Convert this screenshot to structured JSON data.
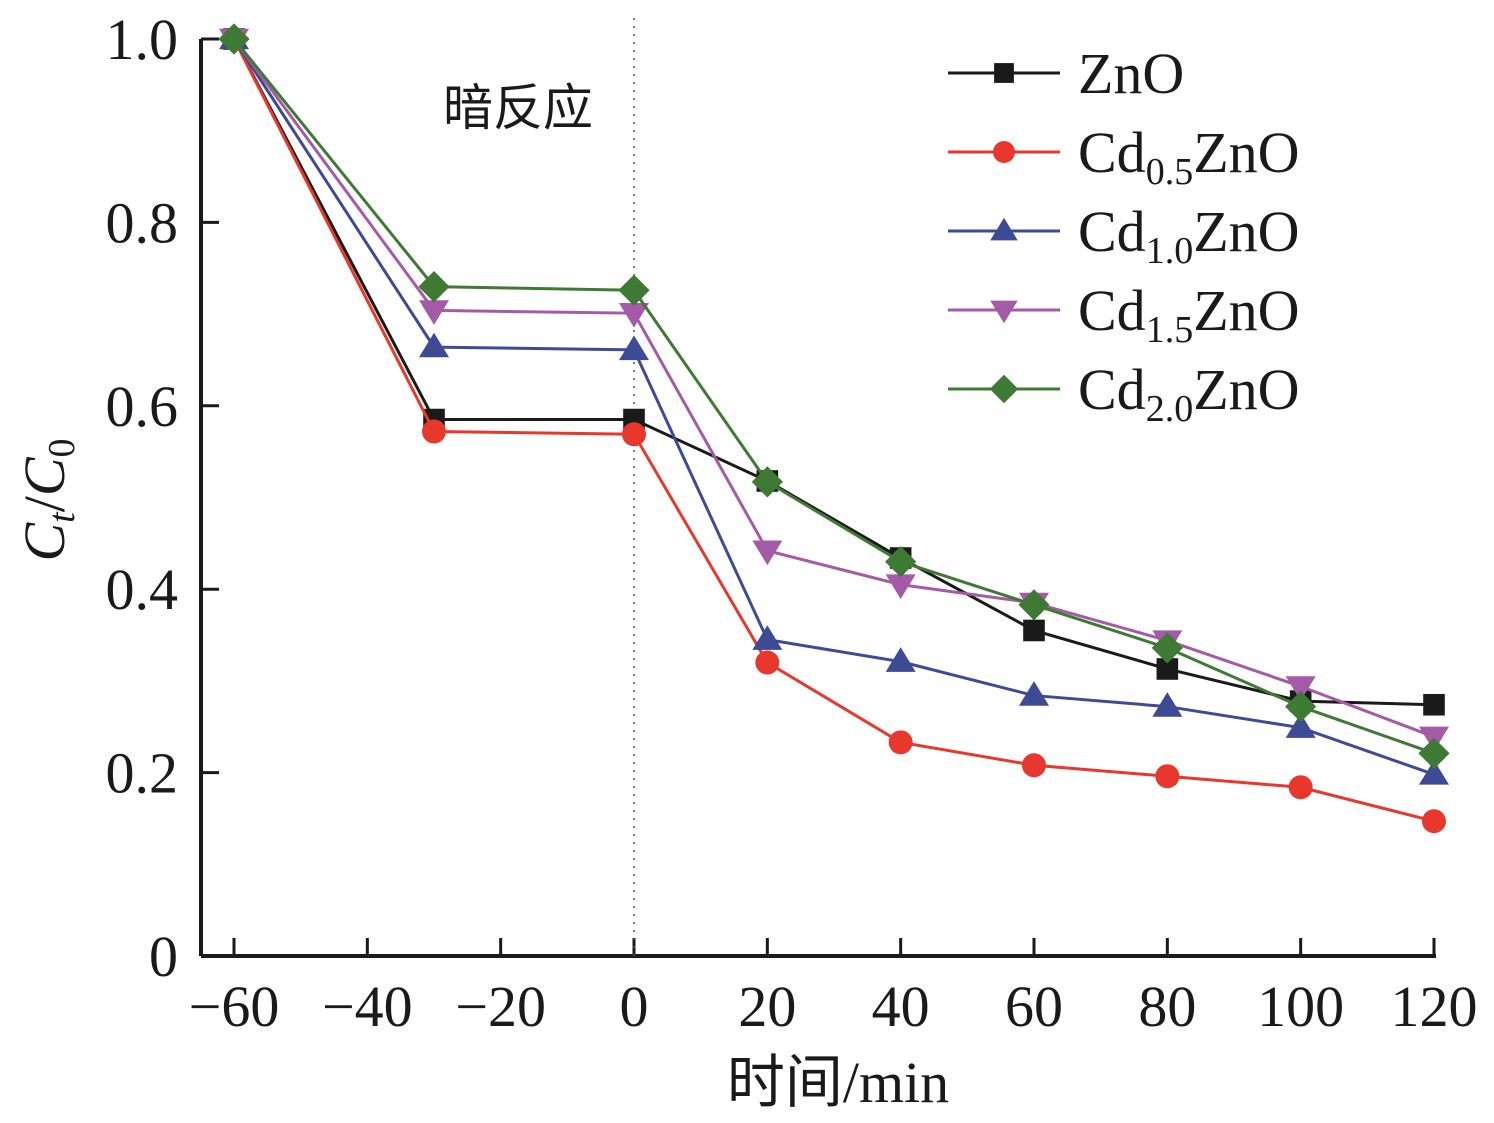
{
  "chart_data": {
    "type": "line",
    "title": "",
    "xlabel": "时间/min",
    "ylabel": "Ct/C0",
    "ylabel_parts": {
      "main1": "C",
      "sub1": "t",
      "slash": "/",
      "main2": "C",
      "sub2": "0"
    },
    "xlim": [
      -65,
      122
    ],
    "ylim": [
      0,
      1.0
    ],
    "x_ticks": [
      -60,
      -40,
      -20,
      0,
      20,
      40,
      60,
      80,
      100,
      120
    ],
    "x_tick_labels": [
      "−60",
      "−40",
      "−20",
      "0",
      "20",
      "40",
      "60",
      "80",
      "100",
      "120"
    ],
    "y_ticks": [
      0,
      0.2,
      0.4,
      0.6,
      0.8,
      1.0
    ],
    "y_tick_labels": [
      "0",
      "0.2",
      "0.4",
      "0.6",
      "0.8",
      "1.0"
    ],
    "grid": false,
    "legend_position": "top-right",
    "annotations": [
      {
        "text": "暗反应",
        "x": -17,
        "y": 0.93,
        "note": "dark reaction region"
      }
    ],
    "reference_lines": [
      {
        "type": "vertical",
        "x": 0,
        "style": "dotted"
      }
    ],
    "x": [
      -60,
      -30,
      0,
      20,
      40,
      60,
      80,
      100,
      120
    ],
    "series": [
      {
        "name": "ZnO",
        "label_main": "ZnO",
        "label_sub": "",
        "label_tail": "",
        "color": "#1a1a1a",
        "marker": "square",
        "values": [
          1.0,
          0.585,
          0.585,
          0.518,
          0.434,
          0.355,
          0.313,
          0.278,
          0.274
        ]
      },
      {
        "name": "Cd0.5ZnO",
        "label_main": "Cd",
        "label_sub": "0.5",
        "label_tail": "ZnO",
        "color": "#e8372c",
        "marker": "circle",
        "values": [
          1.0,
          0.572,
          0.569,
          0.32,
          0.233,
          0.208,
          0.196,
          0.184,
          0.147
        ]
      },
      {
        "name": "Cd1.0ZnO",
        "label_main": "Cd",
        "label_sub": "1.0",
        "label_tail": "ZnO",
        "color": "#3d4a94",
        "marker": "triangle-up",
        "values": [
          1.0,
          0.664,
          0.661,
          0.345,
          0.321,
          0.284,
          0.272,
          0.249,
          0.198
        ]
      },
      {
        "name": "Cd1.5ZnO",
        "label_main": "Cd",
        "label_sub": "1.5",
        "label_tail": "ZnO",
        "color": "#a45aa6",
        "marker": "triangle-down",
        "values": [
          1.0,
          0.704,
          0.701,
          0.442,
          0.405,
          0.385,
          0.344,
          0.294,
          0.239
        ]
      },
      {
        "name": "Cd2.0ZnO",
        "label_main": "Cd",
        "label_sub": "2.0",
        "label_tail": "ZnO",
        "color": "#3f7a35",
        "marker": "diamond",
        "values": [
          1.0,
          0.73,
          0.726,
          0.517,
          0.43,
          0.383,
          0.336,
          0.272,
          0.221
        ]
      }
    ]
  }
}
